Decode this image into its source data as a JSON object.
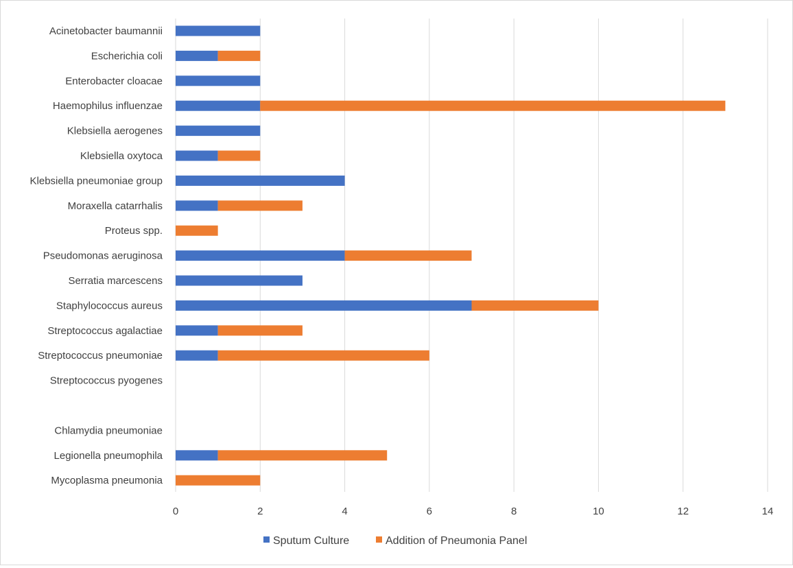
{
  "chart_data": {
    "type": "bar",
    "orientation": "horizontal",
    "stacked": true,
    "categories": [
      "Acinetobacter baumannii",
      "Escherichia coli",
      "Enterobacter cloacae",
      "Haemophilus influenzae",
      "Klebsiella aerogenes",
      "Klebsiella oxytoca",
      "Klebsiella pneumoniae group",
      "Moraxella catarrhalis",
      "Proteus spp.",
      "Pseudomonas aeruginosa",
      "Serratia marcescens",
      "Staphylococcus aureus",
      "Streptococcus agalactiae",
      "Streptococcus pneumoniae",
      "Streptococcus pyogenes",
      "",
      "Chlamydia pneumoniae",
      "Legionella pneumophila",
      "Mycoplasma pneumonia"
    ],
    "series": [
      {
        "name": "Sputum Culture",
        "color": "#4472c4",
        "values": [
          2,
          1,
          2,
          2,
          2,
          1,
          4,
          1,
          0,
          4,
          3,
          7,
          1,
          1,
          0,
          0,
          0,
          1,
          0
        ]
      },
      {
        "name": "Addition of Pneumonia Panel",
        "color": "#ed7d31",
        "values": [
          0,
          1,
          0,
          11,
          0,
          1,
          0,
          2,
          1,
          3,
          0,
          3,
          2,
          5,
          0,
          0,
          0,
          4,
          2
        ]
      }
    ],
    "x_ticks": [
      "0",
      "2",
      "4",
      "6",
      "8",
      "10",
      "12",
      "14"
    ],
    "xlim": [
      0,
      14
    ],
    "title": "",
    "xlabel": "",
    "ylabel": "",
    "grid": "vertical",
    "legend_position": "bottom"
  }
}
